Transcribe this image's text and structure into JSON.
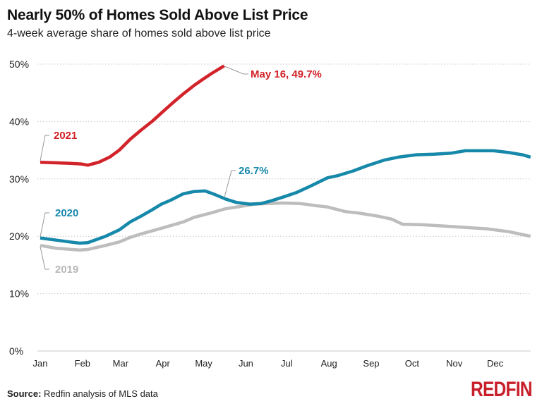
{
  "chart_data": {
    "type": "line",
    "title": "Nearly 50% of Homes Sold Above List Price",
    "subtitle": "4-week average share of homes sold above list price",
    "xlabel": "",
    "ylabel": "",
    "x_ticks": [
      "Jan",
      "Feb",
      "Mar",
      "Apr",
      "May",
      "Jun",
      "Jul",
      "Aug",
      "Sep",
      "Oct",
      "Nov",
      "Dec"
    ],
    "y_ticks": [
      "0%",
      "10%",
      "20%",
      "30%",
      "40%",
      "50%"
    ],
    "ylim": [
      0,
      50
    ],
    "xlim": [
      "01-01",
      "12-27"
    ],
    "grid": "horizontal dotted",
    "legend": "none (inline labels)",
    "series": [
      {
        "name": "2019",
        "color": "#bdbdbd",
        "points": [
          [
            "01-01",
            18.4
          ],
          [
            "01-13",
            17.9
          ],
          [
            "01-30",
            17.6
          ],
          [
            "02-05",
            17.7
          ],
          [
            "02-18",
            18.4
          ],
          [
            "02-28",
            19.0
          ],
          [
            "03-08",
            19.8
          ],
          [
            "03-16",
            20.4
          ],
          [
            "03-31",
            21.4
          ],
          [
            "04-16",
            22.5
          ],
          [
            "04-24",
            23.3
          ],
          [
            "05-07",
            24.1
          ],
          [
            "05-17",
            24.8
          ],
          [
            "05-28",
            25.2
          ],
          [
            "06-07",
            25.6
          ],
          [
            "06-17",
            25.7
          ],
          [
            "06-28",
            25.8
          ],
          [
            "07-11",
            25.7
          ],
          [
            "07-24",
            25.3
          ],
          [
            "07-31",
            25.1
          ],
          [
            "08-13",
            24.3
          ],
          [
            "08-24",
            24.0
          ],
          [
            "09-06",
            23.5
          ],
          [
            "09-16",
            23.0
          ],
          [
            "09-24",
            22.1
          ],
          [
            "10-09",
            22.0
          ],
          [
            "10-30",
            21.7
          ],
          [
            "11-12",
            21.5
          ],
          [
            "11-25",
            21.3
          ],
          [
            "12-11",
            20.8
          ],
          [
            "12-27",
            20.0
          ]
        ]
      },
      {
        "name": "2020",
        "color": "#1688aa",
        "points": [
          [
            "01-01",
            19.7
          ],
          [
            "01-23",
            19.0
          ],
          [
            "01-30",
            18.8
          ],
          [
            "02-05",
            18.9
          ],
          [
            "02-18",
            20.0
          ],
          [
            "02-28",
            21.1
          ],
          [
            "03-08",
            22.5
          ],
          [
            "03-16",
            23.5
          ],
          [
            "03-24",
            24.6
          ],
          [
            "03-31",
            25.6
          ],
          [
            "04-06",
            26.2
          ],
          [
            "04-16",
            27.4
          ],
          [
            "04-24",
            27.8
          ],
          [
            "05-02",
            27.9
          ],
          [
            "05-09",
            27.3
          ],
          [
            "05-17",
            26.5
          ],
          [
            "05-25",
            25.9
          ],
          [
            "06-04",
            25.6
          ],
          [
            "06-12",
            25.7
          ],
          [
            "06-20",
            26.2
          ],
          [
            "06-28",
            26.8
          ],
          [
            "07-08",
            27.6
          ],
          [
            "07-18",
            28.7
          ],
          [
            "07-31",
            30.2
          ],
          [
            "08-08",
            30.6
          ],
          [
            "08-19",
            31.4
          ],
          [
            "08-29",
            32.3
          ],
          [
            "09-11",
            33.3
          ],
          [
            "09-21",
            33.8
          ],
          [
            "10-04",
            34.2
          ],
          [
            "10-17",
            34.3
          ],
          [
            "10-30",
            34.5
          ],
          [
            "11-09",
            34.9
          ],
          [
            "11-20",
            34.9
          ],
          [
            "11-30",
            34.9
          ],
          [
            "12-11",
            34.6
          ],
          [
            "12-21",
            34.2
          ],
          [
            "12-27",
            33.8
          ]
        ]
      },
      {
        "name": "2021",
        "color": "#d2232a",
        "points": [
          [
            "01-01",
            32.9
          ],
          [
            "01-13",
            32.8
          ],
          [
            "01-23",
            32.7
          ],
          [
            "01-31",
            32.6
          ],
          [
            "02-05",
            32.4
          ],
          [
            "02-13",
            32.9
          ],
          [
            "02-21",
            33.8
          ],
          [
            "02-28",
            35.0
          ],
          [
            "03-08",
            36.9
          ],
          [
            "03-16",
            38.5
          ],
          [
            "03-24",
            40.0
          ],
          [
            "03-31",
            41.5
          ],
          [
            "04-08",
            43.2
          ],
          [
            "04-16",
            44.8
          ],
          [
            "04-24",
            46.3
          ],
          [
            "04-30",
            47.3
          ],
          [
            "05-07",
            48.4
          ],
          [
            "05-16",
            49.7
          ]
        ]
      }
    ],
    "annotations": [
      {
        "text": "May 16, 49.7%",
        "series": "2021"
      },
      {
        "text": "26.7%",
        "series": "2020"
      },
      {
        "text": "2021",
        "series": "2021"
      },
      {
        "text": "2020",
        "series": "2020"
      },
      {
        "text": "2019",
        "series": "2019"
      }
    ]
  },
  "footer": {
    "source_label": "Source:",
    "source_text": " Redfin analysis of MLS data",
    "logo": "REDFIN"
  }
}
